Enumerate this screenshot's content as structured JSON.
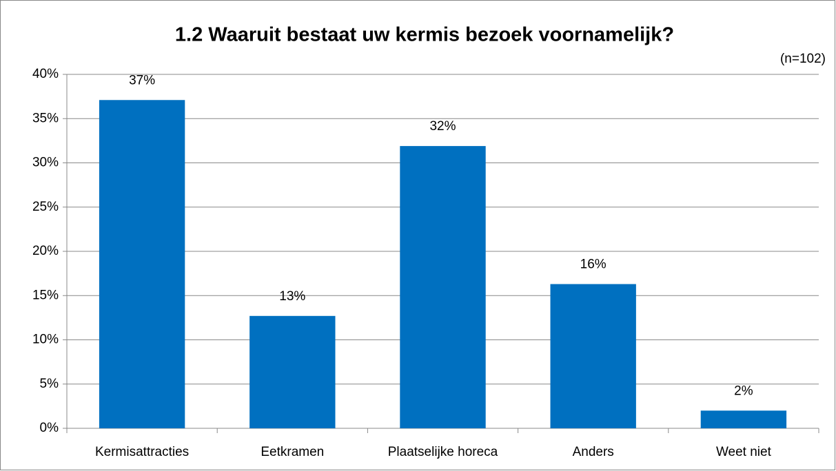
{
  "chart_data": {
    "type": "bar",
    "title": "1.2 Waaruit bestaat uw kermis bezoek voornamelijk?",
    "annotation": "(n=102)",
    "categories": [
      "Kermisattracties",
      "Eetkramen",
      "Plaatselijke horeca",
      "Anders",
      "Weet niet"
    ],
    "values": [
      37.1,
      12.7,
      31.9,
      16.3,
      2.0
    ],
    "value_labels": [
      "37%",
      "13%",
      "32%",
      "16%",
      "2%"
    ],
    "color": "#0070c0",
    "ylim": [
      0,
      40
    ],
    "yticks": [
      {
        "value": 0,
        "label": "0%"
      },
      {
        "value": 5,
        "label": "5%"
      },
      {
        "value": 10,
        "label": "10%"
      },
      {
        "value": 15,
        "label": "15%"
      },
      {
        "value": 20,
        "label": "20%"
      },
      {
        "value": 25,
        "label": "25%"
      },
      {
        "value": 30,
        "label": "30%"
      },
      {
        "value": 35,
        "label": "35%"
      },
      {
        "value": 40,
        "label": "40%"
      }
    ],
    "grid": true
  }
}
